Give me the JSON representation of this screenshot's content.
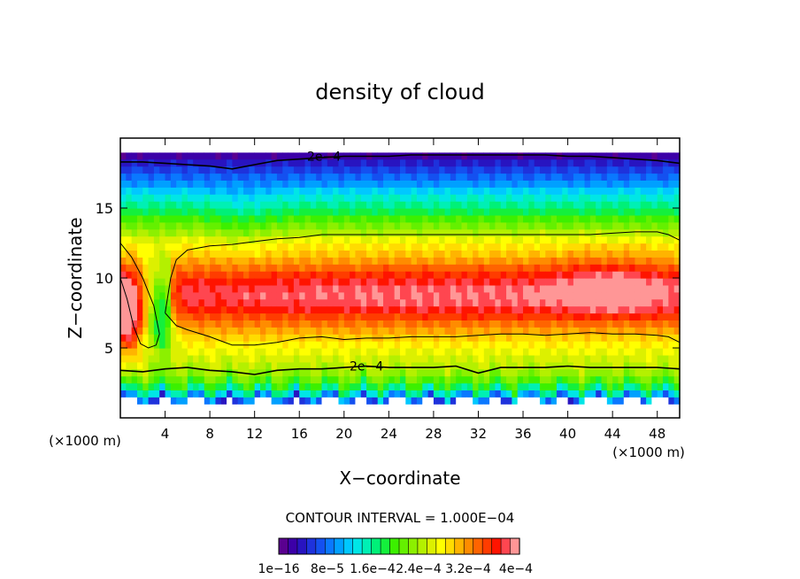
{
  "chart_data": {
    "type": "heatmap",
    "title": "density of cloud",
    "xlabel": "X−coordinate",
    "ylabel": "Z−coordinate",
    "x_unit": "(×1000 m)",
    "y_unit": "(×1000 m)",
    "xlim": [
      0,
      50
    ],
    "ylim": [
      0,
      20
    ],
    "x_ticks": [
      4,
      8,
      12,
      16,
      20,
      24,
      28,
      32,
      36,
      40,
      44,
      48
    ],
    "y_ticks": [
      5,
      10,
      15
    ],
    "contour_interval_text": "CONTOUR INTERVAL = 1.000E−04",
    "contour_label": "2e−4",
    "colorbar": {
      "labels": [
        "1e−16",
        "8e−5",
        "1.6e−4",
        "2.4e−4",
        "3.2e−4",
        "4e−4"
      ],
      "min": 0,
      "max": 0.0004,
      "n_levels": 26,
      "colors": [
        "#5a0090",
        "#3c00a8",
        "#2814c0",
        "#1e32dc",
        "#1450f0",
        "#0a78ff",
        "#00a0ff",
        "#00c8ff",
        "#00e6e6",
        "#00f0b4",
        "#00f078",
        "#14f03c",
        "#3cf000",
        "#64f000",
        "#8cf000",
        "#b4f000",
        "#dcf000",
        "#ffff00",
        "#ffdc00",
        "#ffb400",
        "#ff8c00",
        "#ff6400",
        "#ff3c00",
        "#ff1400",
        "#ff4650",
        "#ff9696"
      ]
    },
    "contour_lines": [
      {
        "level": "2e−4",
        "x": [
          0,
          2,
          4,
          6,
          8,
          10,
          12,
          14,
          16,
          18,
          20,
          22,
          24,
          26,
          28,
          30,
          32,
          34,
          36,
          38,
          40,
          42,
          44,
          46,
          48,
          50
        ],
        "y": [
          18.3,
          18.3,
          18.2,
          18.1,
          18.0,
          17.8,
          18.1,
          18.4,
          18.5,
          18.6,
          18.7,
          18.7,
          18.7,
          18.8,
          18.8,
          18.8,
          18.8,
          18.8,
          18.8,
          18.8,
          18.7,
          18.7,
          18.6,
          18.5,
          18.4,
          18.2
        ]
      },
      {
        "level": "2e−4",
        "x": [
          0,
          2,
          4,
          6,
          8,
          10,
          12,
          14,
          16,
          18,
          20,
          22,
          24,
          26,
          28,
          30,
          32,
          34,
          36,
          38,
          40,
          42,
          44,
          46,
          48,
          50
        ],
        "y": [
          3.4,
          3.3,
          3.5,
          3.6,
          3.4,
          3.3,
          3.1,
          3.4,
          3.5,
          3.5,
          3.6,
          3.7,
          3.6,
          3.6,
          3.6,
          3.7,
          3.2,
          3.6,
          3.6,
          3.6,
          3.7,
          3.6,
          3.6,
          3.6,
          3.6,
          3.5
        ]
      },
      {
        "level": "3e−4",
        "x": [
          0,
          1,
          2,
          3,
          3.5,
          3.2,
          2.5,
          1.8,
          1.2,
          0.6,
          0
        ],
        "y": [
          12.5,
          11.5,
          10.0,
          8.0,
          6.0,
          5.2,
          5.0,
          5.3,
          6.5,
          8.5,
          10
        ]
      },
      {
        "level": "3e−4",
        "x": [
          4,
          4.5,
          5,
          6,
          8,
          10,
          12,
          14,
          16,
          18,
          20,
          22,
          24,
          26,
          28,
          30,
          32,
          34,
          36,
          38,
          40,
          42,
          44,
          46,
          48,
          49,
          50,
          50,
          49,
          48,
          46,
          44,
          42,
          40,
          38,
          36,
          34,
          32,
          30,
          28,
          26,
          24,
          22,
          20,
          18,
          16,
          14,
          12,
          10,
          8,
          6,
          5,
          4
        ],
        "y": [
          7.5,
          10.0,
          11.3,
          12.0,
          12.3,
          12.4,
          12.6,
          12.8,
          12.9,
          13.1,
          13.1,
          13.1,
          13.1,
          13.1,
          13.1,
          13.1,
          13.1,
          13.1,
          13.1,
          13.1,
          13.1,
          13.1,
          13.2,
          13.3,
          13.3,
          13.1,
          12.7,
          5.4,
          5.8,
          5.9,
          6.0,
          6.0,
          6.1,
          6.0,
          5.9,
          6.0,
          6.0,
          5.9,
          5.8,
          5.8,
          5.8,
          5.7,
          5.7,
          5.6,
          5.8,
          5.7,
          5.4,
          5.2,
          5.2,
          5.8,
          6.3,
          6.6,
          7.5
        ]
      }
    ]
  }
}
